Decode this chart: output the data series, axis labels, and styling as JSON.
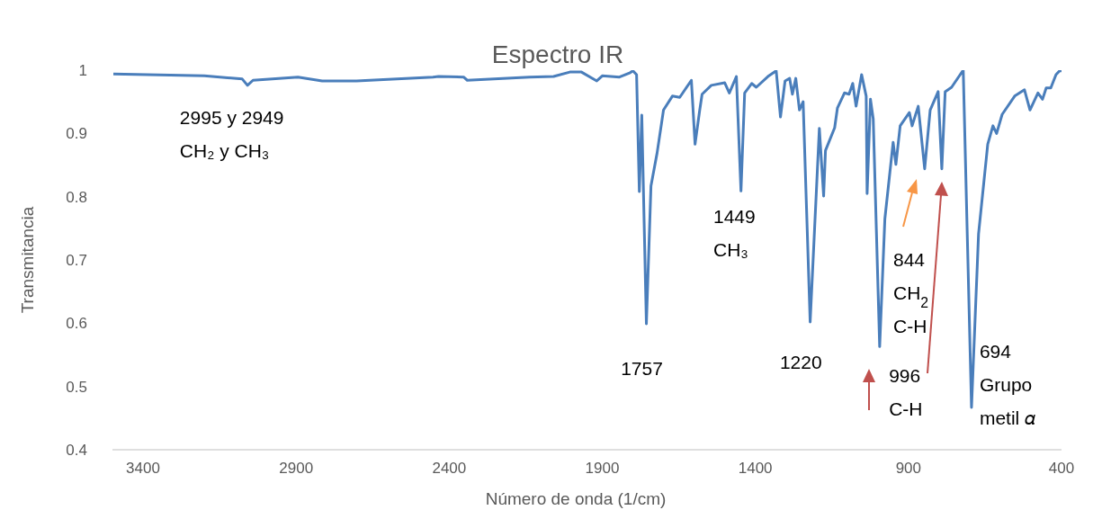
{
  "chart_data": {
    "type": "line",
    "title": "Espectro IR",
    "xlabel": "Número de onda (1/cm)",
    "ylabel": "Transmitancia",
    "color": "#4a7ebb",
    "grid": false,
    "legend": false,
    "marker": "none",
    "line_style": "solid",
    "xlim": [
      3500,
      400
    ],
    "xticks": [
      3400,
      2900,
      2400,
      1900,
      1400,
      900,
      400
    ],
    "ylim": [
      0.4,
      1
    ],
    "yticks": [
      0.4,
      0.5,
      0.6,
      0.7,
      0.8,
      0.9,
      1
    ],
    "x": [
      3497,
      3200,
      3076,
      3059,
      3041,
      2894,
      2815,
      2703,
      2453,
      2435,
      2353,
      2341,
      2138,
      2059,
      2006,
      1968,
      1918,
      1900,
      1844,
      1809,
      1800,
      1788,
      1779,
      1771,
      1756,
      1741,
      1721,
      1700,
      1671,
      1647,
      1609,
      1597,
      1582,
      1574,
      1544,
      1500,
      1485,
      1462,
      1447,
      1435,
      1412,
      1397,
      1359,
      1332,
      1318,
      1303,
      1288,
      1279,
      1268,
      1256,
      1244,
      1221,
      1191,
      1177,
      1171,
      1141,
      1132,
      1109,
      1094,
      1082,
      1071,
      1053,
      1038,
      1035,
      1024,
      1015,
      994,
      977,
      950,
      941,
      927,
      897,
      888,
      868,
      847,
      829,
      803,
      791,
      780,
      759,
      721,
      694,
      671,
      641,
      624,
      612,
      594,
      553,
      521,
      503,
      477,
      462,
      450,
      435,
      418,
      406,
      400
    ],
    "values": [
      0.994,
      0.991,
      0.986,
      0.976,
      0.984,
      0.989,
      0.983,
      0.983,
      0.989,
      0.99,
      0.989,
      0.984,
      0.989,
      0.99,
      0.997,
      0.997,
      0.983,
      0.991,
      0.989,
      0.996,
      0.999,
      0.993,
      0.808,
      0.929,
      0.599,
      0.817,
      0.869,
      0.937,
      0.959,
      0.957,
      0.984,
      0.883,
      0.936,
      0.962,
      0.976,
      0.98,
      0.964,
      0.99,
      0.809,
      0.964,
      0.979,
      0.973,
      0.99,
      0.999,
      0.926,
      0.983,
      0.987,
      0.962,
      0.987,
      0.937,
      0.95,
      0.602,
      0.908,
      0.801,
      0.873,
      0.909,
      0.94,
      0.964,
      0.962,
      0.979,
      0.943,
      0.993,
      0.959,
      0.805,
      0.954,
      0.923,
      0.563,
      0.765,
      0.886,
      0.851,
      0.912,
      0.933,
      0.912,
      0.943,
      0.844,
      0.937,
      0.966,
      0.844,
      0.966,
      0.973,
      1.0,
      0.467,
      0.741,
      0.883,
      0.912,
      0.9,
      0.93,
      0.959,
      0.969,
      0.937,
      0.964,
      0.954,
      0.972,
      0.972,
      0.993,
      0.999,
      0.999
    ],
    "annotations": [
      {
        "text": "2995 y 2949\nCH₂ y CH₃",
        "x": 2995,
        "y": 0.985
      },
      {
        "text": "1449\nCH₃",
        "x": 1449,
        "y": 0.809
      },
      {
        "text": "1757",
        "x": 1757,
        "y": 0.599
      },
      {
        "text": "1220",
        "x": 1220,
        "y": 0.602
      },
      "844\nCH$_{2}$\nC-H",
      {
        "text": "996\nC-H",
        "x": 996,
        "y": 0.563
      },
      {
        "text": "694\nGrupo\nmetil 𝛼",
        "x": 694,
        "y": 0.467
      }
    ]
  }
}
